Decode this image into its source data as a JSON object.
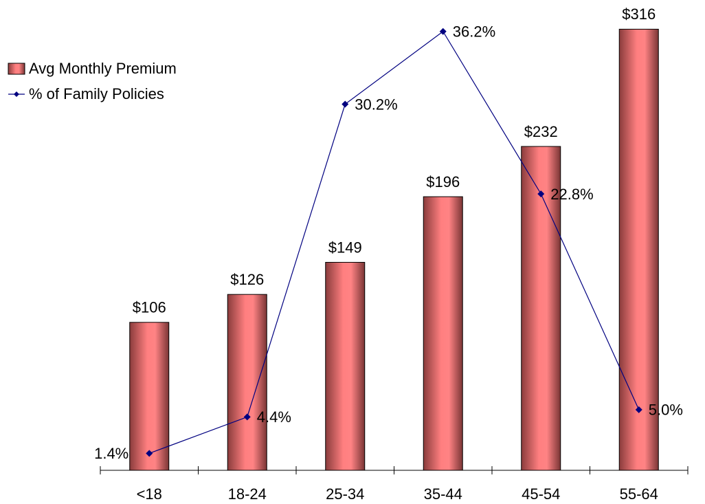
{
  "chart_data": {
    "type": "bar",
    "categories": [
      "<18",
      "18-24",
      "25-34",
      "35-44",
      "45-54",
      "55-64"
    ],
    "series": [
      {
        "name": "Avg Monthly Premium",
        "type": "bar",
        "color": "#ff7f80",
        "values": [
          106,
          126,
          149,
          196,
          232,
          316
        ],
        "value_labels": [
          "$106",
          "$126",
          "$149",
          "$196",
          "$232",
          "$316"
        ]
      },
      {
        "name": "% of Family Policies",
        "type": "line",
        "axis": "y2",
        "color": "#000080",
        "values": [
          1.4,
          4.4,
          30.2,
          36.2,
          22.8,
          5.0
        ],
        "value_labels": [
          "1.4%",
          "4.4%",
          "30.2%",
          "36.2%",
          "22.8%",
          "5.0%"
        ]
      }
    ],
    "ylim": [
      0,
      330
    ],
    "y2lim": [
      0,
      38
    ],
    "legend": "upper left"
  }
}
